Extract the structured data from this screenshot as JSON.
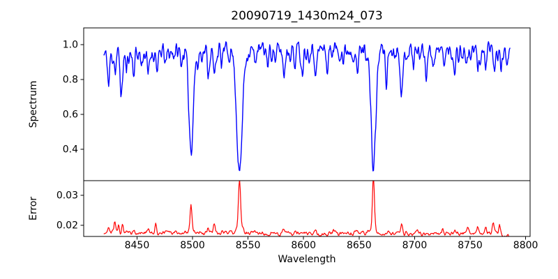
{
  "title": "20090719_1430m24_073",
  "x_axis": {
    "label": "Wavelength",
    "xlim": [
      8402,
      8804
    ],
    "ticks": [
      {
        "value": 8450,
        "label": "8450"
      },
      {
        "value": 8500,
        "label": "8500"
      },
      {
        "value": 8550,
        "label": "8550"
      },
      {
        "value": 8600,
        "label": "8600"
      },
      {
        "value": 8650,
        "label": "8650"
      },
      {
        "value": 8700,
        "label": "8700"
      },
      {
        "value": 8750,
        "label": "8750"
      },
      {
        "value": 8800,
        "label": "8800"
      }
    ]
  },
  "chart_data": [
    {
      "type": "line",
      "panel": "spectrum",
      "ylabel": "Spectrum",
      "color": "#0000ff",
      "line_width": 1.4,
      "ylim": [
        0.22,
        1.096
      ],
      "yticks": [
        {
          "value": 1.0,
          "label": "1.0"
        },
        {
          "value": 0.8,
          "label": "0.8"
        },
        {
          "value": 0.6,
          "label": "0.6"
        },
        {
          "value": 0.4,
          "label": "0.4"
        }
      ],
      "x_start": 8420,
      "x_end": 8786,
      "x_step": 0.5,
      "baseline": [
        [
          8420,
          0.935
        ],
        [
          8450,
          0.95
        ],
        [
          8480,
          0.955
        ],
        [
          8520,
          0.96
        ],
        [
          8560,
          0.965
        ],
        [
          8600,
          0.97
        ],
        [
          8640,
          0.975
        ],
        [
          8665,
          0.975
        ],
        [
          8700,
          0.965
        ],
        [
          8740,
          0.955
        ],
        [
          8770,
          0.95
        ],
        [
          8786,
          0.94
        ]
      ],
      "noise_seed": 11,
      "noise_smooth": 0.08,
      "noise_fine": 0.01,
      "default_sigma": 0.7,
      "features_format": "[center_wavelength, amplitude, sigma]",
      "features": [
        [
          8424.5,
          -0.18,
          0.8
        ],
        [
          8430.5,
          -0.09,
          0.7
        ],
        [
          8436,
          -0.24,
          1.0
        ],
        [
          8440.5,
          -0.11,
          0.7
        ],
        [
          8447,
          -0.11,
          0.8
        ],
        [
          8454,
          -0.07,
          0.7
        ],
        [
          8460,
          -0.14,
          0.9
        ],
        [
          8468.5,
          -0.13,
          0.8
        ],
        [
          8476,
          -0.08,
          0.7
        ],
        [
          8490,
          -0.06,
          0.7
        ],
        [
          8498.7,
          -0.545,
          2.0
        ],
        [
          8504.5,
          -0.09,
          0.7
        ],
        [
          8514.2,
          -0.12,
          0.8
        ],
        [
          8519.5,
          -0.15,
          0.9
        ],
        [
          8526,
          -0.08,
          0.7
        ],
        [
          8542.3,
          -0.71,
          2.4
        ],
        [
          8556,
          -0.075,
          0.7
        ],
        [
          8568,
          -0.085,
          0.7
        ],
        [
          8575,
          -0.075,
          0.7
        ],
        [
          8582.3,
          -0.145,
          0.9
        ],
        [
          8592,
          -0.085,
          0.7
        ],
        [
          8598.8,
          -0.12,
          0.8
        ],
        [
          8611.3,
          -0.14,
          0.9
        ],
        [
          8621.5,
          -0.13,
          0.8
        ],
        [
          8636,
          -0.085,
          0.7
        ],
        [
          8648.4,
          -0.165,
          0.9
        ],
        [
          8662.9,
          -0.675,
          2.2
        ],
        [
          8674.8,
          -0.19,
          0.9
        ],
        [
          8688.6,
          -0.265,
          1.1
        ],
        [
          8699,
          -0.075,
          0.7
        ],
        [
          8710.4,
          -0.115,
          0.8
        ],
        [
          8717,
          -0.075,
          0.7
        ],
        [
          8727,
          -0.06,
          0.7
        ],
        [
          8736,
          -0.085,
          0.8
        ],
        [
          8747,
          -0.075,
          0.7
        ],
        [
          8757.1,
          -0.09,
          0.8
        ],
        [
          8764,
          -0.07,
          0.7
        ],
        [
          8772,
          -0.09,
          0.8
        ],
        [
          8778,
          -0.085,
          0.8
        ]
      ],
      "summary": "Noisy stellar spectrum, continuum ~0.95 (band 0.88-1.03); major absorption minima read off chart: 8498.7 -> 0.41, 8542.3 -> 0.25, 8662.9 -> 0.29, 8688.6 -> 0.70"
    },
    {
      "type": "line",
      "panel": "error",
      "ylabel": "Error",
      "color": "#ff0000",
      "line_width": 1.2,
      "ylim": [
        0.0163,
        0.0349
      ],
      "yticks": [
        {
          "value": 0.03,
          "label": "0.03"
        },
        {
          "value": 0.02,
          "label": "0.02"
        }
      ],
      "x_start": 8420,
      "x_end": 8786,
      "x_step": 0.6,
      "baseline": [
        [
          8420,
          0.0179
        ],
        [
          8450,
          0.0175
        ],
        [
          8550,
          0.0174
        ],
        [
          8650,
          0.0172
        ],
        [
          8700,
          0.0172
        ],
        [
          8740,
          0.0174
        ],
        [
          8770,
          0.0176
        ],
        [
          8778,
          0.0173
        ],
        [
          8780,
          0.0163
        ],
        [
          8786,
          0.0166
        ]
      ],
      "noise_seed": 29,
      "noise_smooth": 0.0009,
      "noise_fine": 0.00025,
      "default_sigma": 0.7,
      "features_format": "[center_wavelength, amplitude, sigma]",
      "features": [
        [
          8424.5,
          0.002,
          0.8
        ],
        [
          8430,
          0.0038,
          0.6
        ],
        [
          8433.5,
          0.003,
          0.6
        ],
        [
          8437,
          0.0032,
          0.7
        ],
        [
          8447,
          0.0012,
          0.7
        ],
        [
          8460,
          0.001,
          0.8
        ],
        [
          8467,
          0.0027,
          0.7
        ],
        [
          8476,
          0.0008,
          0.7
        ],
        [
          8498.7,
          0.0085,
          0.8
        ],
        [
          8498.7,
          0.0012,
          2.5
        ],
        [
          8514,
          0.0012,
          0.7
        ],
        [
          8519.5,
          0.0028,
          0.8
        ],
        [
          8542.3,
          0.0152,
          1.0
        ],
        [
          8542.3,
          0.002,
          3.0
        ],
        [
          8556,
          0.0008,
          0.7
        ],
        [
          8582,
          0.0012,
          0.7
        ],
        [
          8598,
          0.001,
          0.7
        ],
        [
          8611,
          0.0015,
          0.8
        ],
        [
          8627,
          0.001,
          0.7
        ],
        [
          8648,
          0.001,
          0.7
        ],
        [
          8662.9,
          0.0168,
          0.9
        ],
        [
          8662.9,
          0.002,
          3.0
        ],
        [
          8676,
          0.0015,
          0.7
        ],
        [
          8688.6,
          0.0032,
          0.9
        ],
        [
          8703,
          0.001,
          0.7
        ],
        [
          8725,
          0.0012,
          0.7
        ],
        [
          8736,
          0.001,
          0.7
        ],
        [
          8748,
          0.0018,
          0.8
        ],
        [
          8757,
          0.002,
          0.8
        ],
        [
          8764,
          0.0022,
          0.8
        ],
        [
          8770.5,
          0.0032,
          0.8
        ],
        [
          8776.5,
          0.0035,
          0.6
        ]
      ],
      "summary": "Error curve, baseline ~0.0175 (band +/-0.0008); peaks read off chart: 8498.7 -> 0.0265, 8542.3 -> 0.0330, 8662.9 -> 0.0344, 8688.6 -> 0.021; drops to ~0.0165 after 8780"
    }
  ]
}
